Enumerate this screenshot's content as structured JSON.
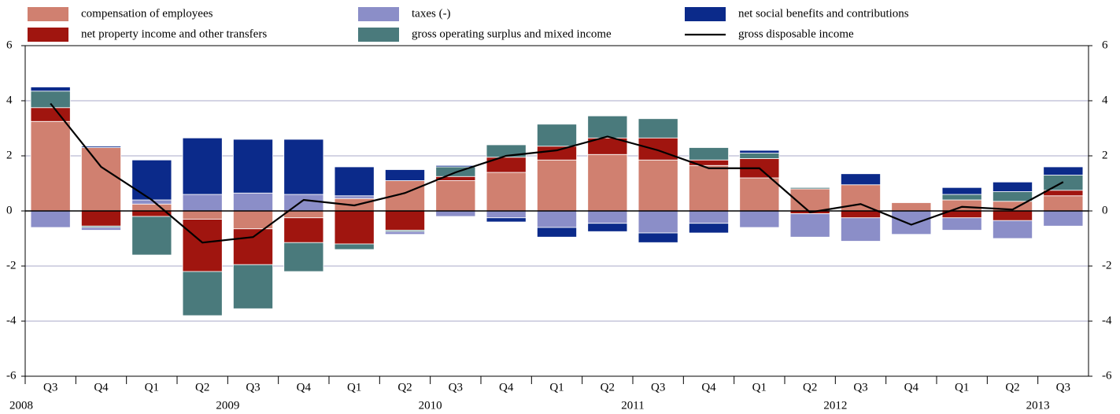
{
  "chart_data": {
    "type": "bar",
    "stacked": true,
    "groups": [
      {
        "name": "2008",
        "categories": [
          "Q3",
          "Q4"
        ]
      },
      {
        "name": "2009",
        "categories": [
          "Q1",
          "Q2",
          "Q3",
          "Q4"
        ]
      },
      {
        "name": "2010",
        "categories": [
          "Q1",
          "Q2",
          "Q3",
          "Q4"
        ]
      },
      {
        "name": "2011",
        "categories": [
          "Q1",
          "Q2",
          "Q3",
          "Q4"
        ]
      },
      {
        "name": "2012",
        "categories": [
          "Q1",
          "Q2",
          "Q3",
          "Q4"
        ]
      },
      {
        "name": "2013",
        "categories": [
          "Q1",
          "Q2",
          "Q3"
        ]
      }
    ],
    "series": [
      {
        "name": "compensation of employees",
        "color": "#d08070",
        "values": [
          3.25,
          2.3,
          0.25,
          -0.3,
          -0.65,
          -0.25,
          0.45,
          1.1,
          1.1,
          1.4,
          1.85,
          2.05,
          1.85,
          1.65,
          1.2,
          0.8,
          0.95,
          0.3,
          0.4,
          0.35,
          0.55
        ]
      },
      {
        "name": "taxes (-)",
        "color": "#8b8ec8",
        "values": [
          -0.6,
          -0.1,
          0.15,
          0.6,
          0.65,
          0.6,
          0.1,
          -0.1,
          -0.2,
          -0.25,
          -0.6,
          -0.45,
          -0.8,
          -0.45,
          -0.6,
          -0.85,
          -0.85,
          -0.85,
          -0.45,
          -0.65,
          -0.55
        ]
      },
      {
        "name": "net social benefits and contributions",
        "color": "#0b2a8a",
        "values": [
          0.15,
          0.05,
          1.45,
          2.05,
          1.95,
          2.0,
          1.05,
          0.4,
          0.05,
          -0.15,
          -0.35,
          -0.3,
          -0.35,
          -0.35,
          0.1,
          0,
          0.4,
          0,
          0.25,
          0.35,
          0.3
        ]
      },
      {
        "name": "net property income and other transfers",
        "color": "#a0150f",
        "values": [
          0.5,
          -0.55,
          -0.2,
          -1.9,
          -1.3,
          -0.9,
          -1.2,
          -0.7,
          0.15,
          0.55,
          0.5,
          0.6,
          0.8,
          0.2,
          0.7,
          -0.1,
          -0.25,
          0,
          -0.25,
          -0.35,
          0.2
        ]
      },
      {
        "name": "gross operating surplus and mixed income",
        "color": "#4a7a7c",
        "values": [
          0.6,
          -0.05,
          -1.4,
          -1.6,
          -1.6,
          -1.05,
          -0.2,
          -0.05,
          0.35,
          0.45,
          0.8,
          0.8,
          0.7,
          0.45,
          0.2,
          0.05,
          0,
          0,
          0.2,
          0.35,
          0.55
        ]
      },
      {
        "name": "gross disposable income",
        "color": "#000000",
        "type": "line",
        "values": [
          3.9,
          1.6,
          0.4,
          -1.15,
          -0.95,
          0.4,
          0.2,
          0.65,
          1.4,
          2.0,
          2.2,
          2.7,
          2.2,
          1.55,
          1.55,
          -0.05,
          0.25,
          -0.5,
          0.15,
          0.05,
          1.05
        ]
      }
    ],
    "ylim": [
      -6,
      6
    ],
    "yticks": [
      -6,
      -4,
      -2,
      0,
      2,
      4,
      6
    ],
    "y2lim": [
      -6,
      6
    ],
    "y2ticks": [
      -6,
      -4,
      -2,
      0,
      2,
      4,
      6
    ],
    "grid": true
  }
}
